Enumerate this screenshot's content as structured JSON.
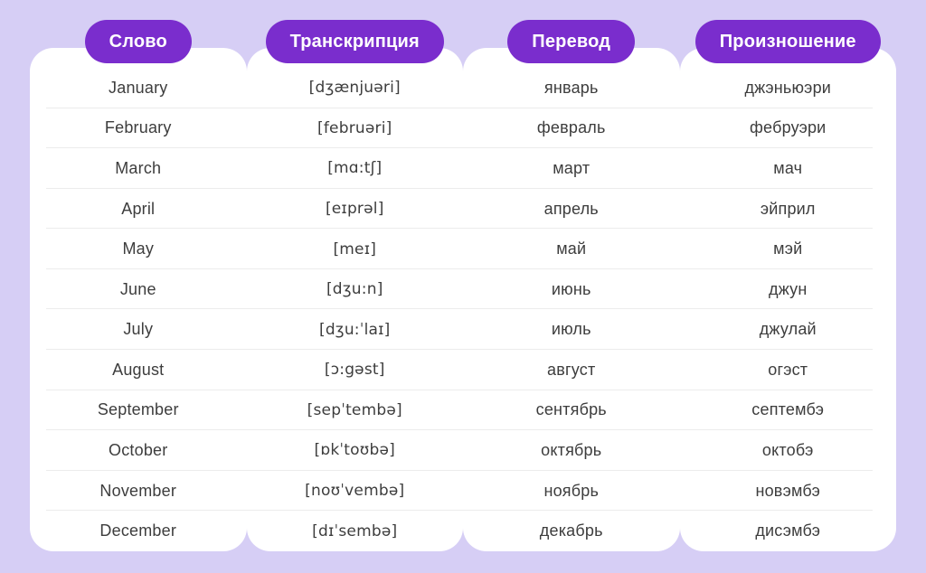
{
  "columns": [
    {
      "label": "Слово"
    },
    {
      "label": "Транскрипция"
    },
    {
      "label": "Перевод"
    },
    {
      "label": "Произношение"
    }
  ],
  "rows": [
    {
      "word": "January",
      "transcription": "[dʒænjuəri]",
      "translation": "январь",
      "pronunciation": "джэньюэри"
    },
    {
      "word": "February",
      "transcription": "[februəri]",
      "translation": "февраль",
      "pronunciation": "фебруэри"
    },
    {
      "word": "March",
      "transcription": "[mɑ:tʃ]",
      "translation": "март",
      "pronunciation": "мач"
    },
    {
      "word": "April",
      "transcription": "[eɪprəl]",
      "translation": "апрель",
      "pronunciation": "эйприл"
    },
    {
      "word": "May",
      "transcription": "[meɪ]",
      "translation": "май",
      "pronunciation": "мэй"
    },
    {
      "word": "June",
      "transcription": "[dʒu:n]",
      "translation": "июнь",
      "pronunciation": "джун"
    },
    {
      "word": "July",
      "transcription": "[dʒu:ˈlaɪ]",
      "translation": "июль",
      "pronunciation": "джулай"
    },
    {
      "word": "August",
      "transcription": "[ɔ:gəst]",
      "translation": "август",
      "pronunciation": "огэст"
    },
    {
      "word": "September",
      "transcription": "[sepˈtembə]",
      "translation": "сентябрь",
      "pronunciation": "септембэ"
    },
    {
      "word": "October",
      "transcription": "[ɒkˈtoʊbə]",
      "translation": "октябрь",
      "pronunciation": "октобэ"
    },
    {
      "word": "November",
      "transcription": "[noʊˈvembə]",
      "translation": "ноябрь",
      "pronunciation": "новэмбэ"
    },
    {
      "word": "December",
      "transcription": "[dɪˈsembə]",
      "translation": "декабрь",
      "pronunciation": "дисэмбэ"
    }
  ],
  "colors": {
    "background": "#d6cef5",
    "card": "#ffffff",
    "accent": "#7a2dcd",
    "pill_text": "#ffffff",
    "text": "#3d3d3d",
    "divider": "#ececec"
  }
}
